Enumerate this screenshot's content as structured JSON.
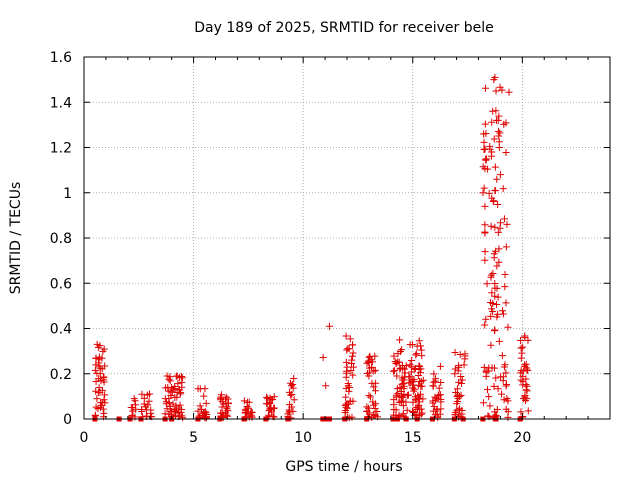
{
  "chart_data": {
    "type": "scatter",
    "title": "Day 189 of 2025, SRMTID for receiver bele",
    "xlabel": "GPS time / hours",
    "ylabel": "SRMTID / TECUs",
    "xlim": [
      0,
      24
    ],
    "ylim": [
      0,
      1.6
    ],
    "xticks": [
      0,
      5,
      10,
      15,
      20
    ],
    "xtick_labels": [
      "0",
      "5",
      "10",
      "15",
      "20"
    ],
    "yticks": [
      0,
      0.2,
      0.4,
      0.6,
      0.8,
      1,
      1.2,
      1.4,
      1.6
    ],
    "ytick_labels": [
      "0",
      "0.2",
      "0.4",
      "0.6",
      "0.8",
      "1",
      "1.2",
      "1.4",
      "1.6"
    ],
    "grid": true,
    "marker": "+",
    "marker_color": "#e00000",
    "clusters": [
      {
        "x_start": 0.5,
        "x_end": 1.0,
        "count": 45,
        "max": 0.33,
        "seed": 11,
        "zeros": [
          0.5
        ]
      },
      {
        "x_start": 2.1,
        "x_end": 2.4,
        "count": 10,
        "max": 0.09,
        "seed": 12,
        "zeros": [
          1.6,
          2.1
        ]
      },
      {
        "x_start": 2.6,
        "x_end": 3.1,
        "count": 18,
        "max": 0.12,
        "seed": 13,
        "zeros": [
          2.6
        ]
      },
      {
        "x_start": 3.7,
        "x_end": 4.5,
        "count": 60,
        "max": 0.19,
        "seed": 14,
        "zeros": [
          3.7,
          4.0
        ]
      },
      {
        "x_start": 5.2,
        "x_end": 5.6,
        "count": 22,
        "max": 0.14,
        "seed": 15,
        "zeros": [
          5.2
        ]
      },
      {
        "x_start": 6.2,
        "x_end": 6.6,
        "count": 26,
        "max": 0.11,
        "seed": 16,
        "zeros": [
          6.2
        ]
      },
      {
        "x_start": 7.3,
        "x_end": 7.7,
        "count": 22,
        "max": 0.08,
        "seed": 17,
        "zeros": [
          7.3
        ]
      },
      {
        "x_start": 8.3,
        "x_end": 8.7,
        "count": 22,
        "max": 0.1,
        "seed": 18,
        "zeros": [
          8.3
        ]
      },
      {
        "x_start": 9.3,
        "x_end": 9.6,
        "count": 18,
        "max": 0.18,
        "seed": 19,
        "zeros": [
          9.3
        ]
      },
      {
        "x_start": 10.9,
        "x_end": 11.2,
        "count": 2,
        "max": 0.4,
        "seed": 20,
        "zeros": [
          10.9,
          11.0,
          11.1,
          11.2
        ]
      },
      {
        "x_start": 11.9,
        "x_end": 12.3,
        "count": 40,
        "max": 0.37,
        "seed": 21,
        "zeros": [
          11.9
        ]
      },
      {
        "x_start": 12.9,
        "x_end": 13.4,
        "count": 40,
        "max": 0.28,
        "seed": 22,
        "zeros": [
          12.9
        ]
      },
      {
        "x_start": 14.1,
        "x_end": 15.5,
        "count": 120,
        "max": 0.35,
        "seed": 23,
        "zeros": [
          14.1,
          14.3,
          14.7,
          15.2
        ]
      },
      {
        "x_start": 15.9,
        "x_end": 16.3,
        "count": 28,
        "max": 0.24,
        "seed": 24,
        "zeros": [
          15.9
        ]
      },
      {
        "x_start": 16.9,
        "x_end": 17.4,
        "count": 35,
        "max": 0.3,
        "seed": 25,
        "zeros": [
          16.9,
          17.3
        ]
      },
      {
        "x_start": 18.2,
        "x_end": 19.4,
        "count": 130,
        "max": 1.51,
        "seed": 26,
        "zeros": [
          18.2,
          18.8
        ]
      },
      {
        "x_start": 19.9,
        "x_end": 20.3,
        "count": 35,
        "max": 0.37,
        "seed": 27,
        "zeros": [
          19.9
        ]
      }
    ],
    "peak_points": [
      {
        "x": 11.2,
        "y": 0.41
      },
      {
        "x": 18.7,
        "y": 1.5
      },
      {
        "x": 18.75,
        "y": 1.51
      },
      {
        "x": 18.8,
        "y": 1.45
      },
      {
        "x": 18.65,
        "y": 1.36
      },
      {
        "x": 18.9,
        "y": 1.32
      },
      {
        "x": 18.95,
        "y": 1.2
      },
      {
        "x": 18.6,
        "y": 1.18
      },
      {
        "x": 19.0,
        "y": 1.08
      },
      {
        "x": 19.3,
        "y": 0.86
      },
      {
        "x": 18.3,
        "y": 0.74
      },
      {
        "x": 0.6,
        "y": 0.33
      },
      {
        "x": 14.4,
        "y": 0.35
      }
    ]
  }
}
